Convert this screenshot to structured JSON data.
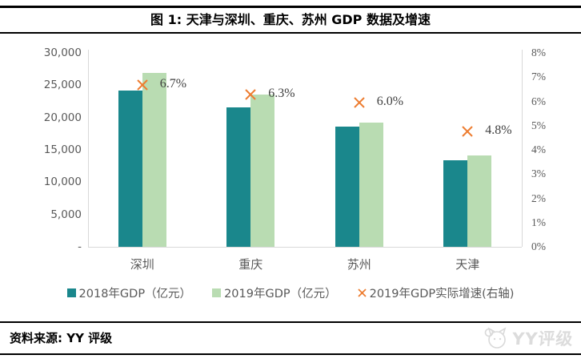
{
  "header": {
    "title": "图 1: 天津与深圳、重庆、苏州 GDP 数据及增速"
  },
  "chart_data": {
    "type": "bar",
    "title": "图 1: 天津与深圳、重庆、苏州 GDP 数据及增速",
    "categories": [
      "深圳",
      "重庆",
      "苏州",
      "天津"
    ],
    "series": [
      {
        "name": "2018年GDP（亿元）",
        "type": "bar",
        "color": "#1a878c",
        "axis": "left",
        "values": [
          24222,
          21589,
          18597,
          13363
        ]
      },
      {
        "name": "2019年GDP（亿元）",
        "type": "bar",
        "color": "#b9dcb2",
        "axis": "left",
        "values": [
          26927,
          23606,
          19236,
          14104
        ]
      },
      {
        "name": "2019年GDP实际增速(右轴)",
        "type": "scatter-x",
        "color": "#ed7d31",
        "axis": "right",
        "values": [
          6.7,
          6.3,
          6.0,
          4.8
        ],
        "labels": [
          "6.7%",
          "6.3%",
          "6.0%",
          "4.8%"
        ]
      }
    ],
    "left_axis": {
      "min": 0,
      "max": 30000,
      "ticks": [
        "30,000",
        "25,000",
        "20,000",
        "15,000",
        "10,000",
        "5,000",
        "-"
      ]
    },
    "right_axis": {
      "min": 0,
      "max": 8,
      "ticks": [
        "8%",
        "7%",
        "6%",
        "5%",
        "4%",
        "3%",
        "2%",
        "1%",
        "0%"
      ]
    },
    "grid": false,
    "legend_position": "bottom"
  },
  "footer": {
    "source_label": "资料来源: YY 评级",
    "brand_text": "YY评级"
  },
  "colors": {
    "bar_2018": "#1a878c",
    "bar_2019": "#b9dcb2",
    "marker": "#ed7d31",
    "axis_line": "#d9d9d9",
    "axis_text": "#595959"
  }
}
